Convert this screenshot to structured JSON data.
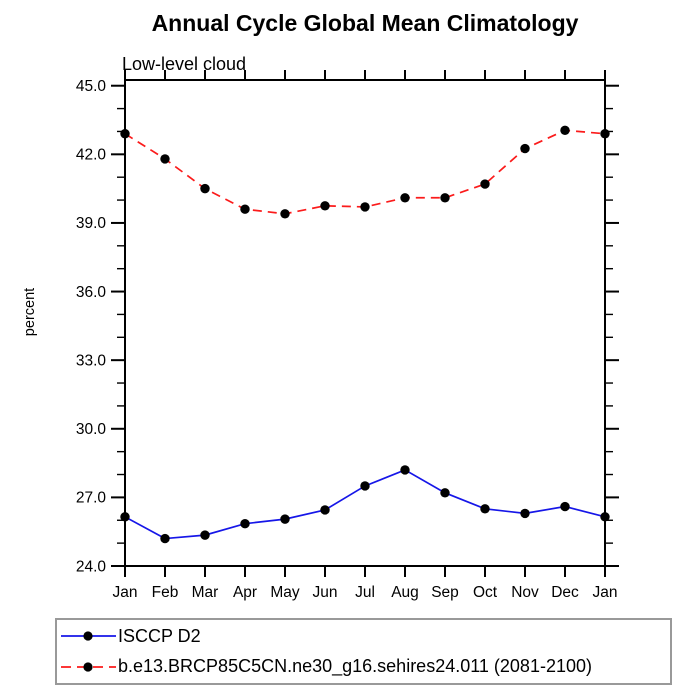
{
  "chart_data": {
    "type": "line",
    "title": "Annual Cycle Global Mean Climatology",
    "subtitle": "Low-level cloud",
    "xlabel": "",
    "ylabel": "percent",
    "categories": [
      "Jan",
      "Feb",
      "Mar",
      "Apr",
      "May",
      "Jun",
      "Jul",
      "Aug",
      "Sep",
      "Oct",
      "Nov",
      "Dec",
      "Jan"
    ],
    "ylim": [
      24.0,
      45.25
    ],
    "ytick_labels": [
      "24.0",
      "27.0",
      "30.0",
      "33.0",
      "36.0",
      "39.0",
      "42.0",
      "45.0"
    ],
    "ytick_step": 3.0,
    "minor_tick_step": 1.0,
    "grid": false,
    "legend_position": "bottom-left",
    "axis_color": "#000000",
    "marker_color": "#000000",
    "series": [
      {
        "name": "ISCCP D2",
        "color": "#1616e8",
        "line_style": "solid",
        "marker": "circle",
        "values": [
          26.15,
          25.2,
          25.35,
          25.85,
          26.05,
          26.45,
          27.5,
          28.2,
          27.2,
          26.5,
          26.3,
          26.6,
          26.15
        ]
      },
      {
        "name": "b.e13.BRCP85C5CN.ne30_g16.sehires24.011 (2081-2100)",
        "color": "#fb1b1b",
        "line_style": "dashed",
        "marker": "circle",
        "values": [
          42.9,
          41.8,
          40.5,
          39.6,
          39.4,
          39.75,
          39.7,
          40.1,
          40.1,
          40.7,
          42.25,
          43.05,
          42.9
        ]
      }
    ]
  }
}
